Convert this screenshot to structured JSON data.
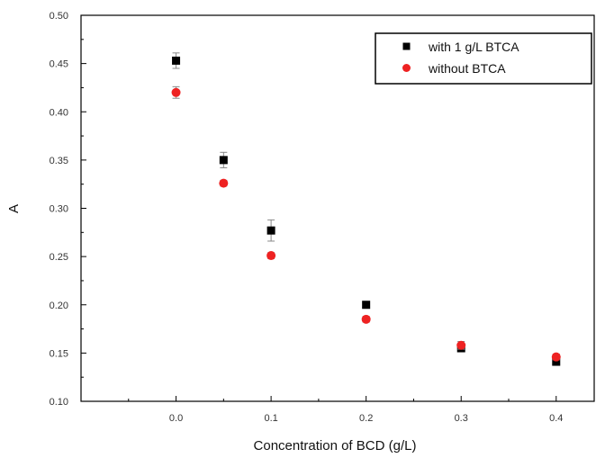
{
  "chart_data": {
    "type": "scatter",
    "title": "",
    "xlabel": "Concentration of BCD (g/L)",
    "ylabel": "A",
    "xlim": [
      -0.1,
      0.44
    ],
    "ylim": [
      0.1,
      0.5
    ],
    "xticks": [
      0.0,
      0.1,
      0.2,
      0.3,
      0.4
    ],
    "xtick_labels": [
      "0.0",
      "0.1",
      "0.2",
      "0.3",
      "0.4"
    ],
    "yticks": [
      0.1,
      0.15,
      0.2,
      0.25,
      0.3,
      0.35,
      0.4,
      0.45,
      0.5
    ],
    "ytick_labels": [
      "0.10",
      "0.15",
      "0.20",
      "0.25",
      "0.30",
      "0.35",
      "0.40",
      "0.45",
      "0.50"
    ],
    "grid": false,
    "legend_position": "top-right",
    "series": [
      {
        "name": "with 1 g/L BTCA",
        "marker": "square",
        "color": "#000000",
        "x": [
          0.0,
          0.05,
          0.1,
          0.2,
          0.3,
          0.4
        ],
        "y": [
          0.453,
          0.35,
          0.277,
          0.2,
          0.155,
          0.141
        ],
        "err": [
          0.008,
          0.008,
          0.011,
          0.003,
          0.003,
          0.003
        ]
      },
      {
        "name": "without BTCA",
        "marker": "circle",
        "color": "#ee2222",
        "x": [
          0.0,
          0.05,
          0.1,
          0.2,
          0.3,
          0.4
        ],
        "y": [
          0.42,
          0.326,
          0.251,
          0.185,
          0.158,
          0.146
        ],
        "err": [
          0.006,
          0.003,
          0.003,
          0.003,
          0.004,
          0.003
        ]
      }
    ]
  }
}
